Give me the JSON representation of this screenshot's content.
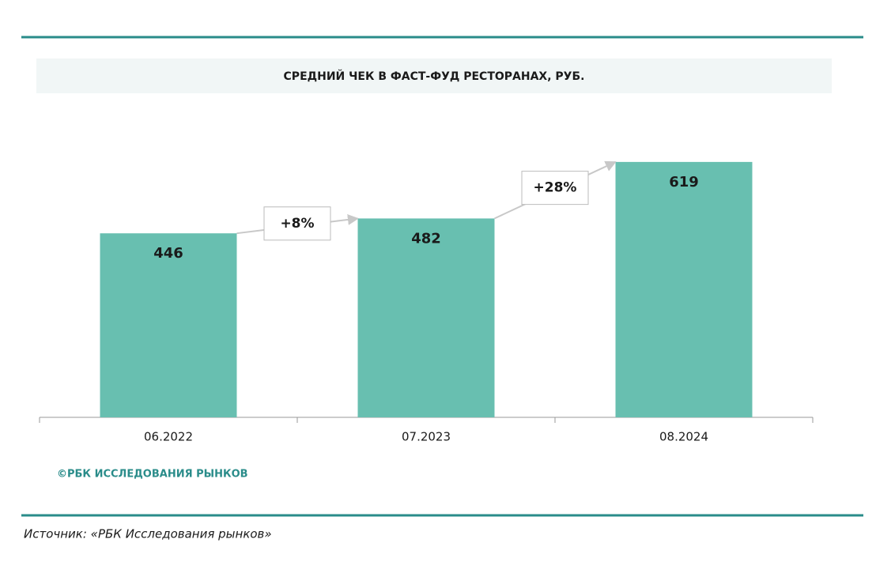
{
  "chart_data": {
    "type": "bar",
    "title": "СРЕДНИЙ ЧЕК В ФАСТ-ФУД РЕСТОРАНАХ, РУБ.",
    "categories": [
      "06.2022",
      "07.2023",
      "08.2024"
    ],
    "values": [
      446,
      482,
      619
    ],
    "color": "#68bfb0",
    "annotations": [
      "+8%",
      "+28%"
    ],
    "watermark": "©РБК ИССЛЕДОВАНИЯ РЫНКОВ"
  },
  "source": "Источник: «РБК Исследования рынков»"
}
